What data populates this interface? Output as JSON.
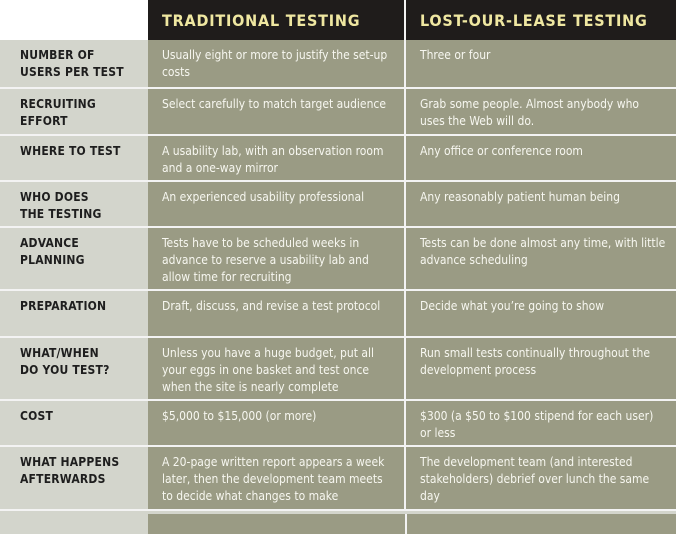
{
  "header": {
    "traditional": "TRADITIONAL TESTING",
    "lost_lease": "LOST-OUR-LEASE TESTING"
  },
  "rows": [
    {
      "label": "NUMBER OF\nUSERS PER TEST",
      "traditional": "Usually eight or more to justify the set-up costs",
      "lost_lease": "Three or four"
    },
    {
      "label": "RECRUITING\nEFFORT",
      "traditional": "Select carefully to match target audience",
      "lost_lease": "Grab some people. Almost anybody who uses the Web will do."
    },
    {
      "label": "WHERE TO TEST",
      "traditional": "A usability lab, with an observation room and a one-way mirror",
      "lost_lease": "Any office or conference room"
    },
    {
      "label": "WHO DOES\nTHE TESTING",
      "traditional": "An experienced usability professional",
      "lost_lease": "Any reasonably patient human being"
    },
    {
      "label": "ADVANCE\nPLANNING",
      "traditional": "Tests have to be scheduled weeks in advance to reserve a usability lab and allow time for recruiting",
      "lost_lease": "Tests can be done almost any time, with little advance scheduling"
    },
    {
      "label": "PREPARATION",
      "traditional": "Draft, discuss, and revise a test protocol",
      "lost_lease": "Decide what you’re going to show"
    },
    {
      "label": "WHAT/WHEN\nDO YOU TEST?",
      "traditional": "Unless you have a huge budget, put all your eggs in one basket and test once when the site is nearly complete",
      "lost_lease": "Run small tests continually throughout the development process"
    },
    {
      "label": "COST",
      "traditional": "$5,000 to $15,000 (or more)",
      "lost_lease": "$300 (a $50 to $100 stipend for each user) or less"
    },
    {
      "label": "WHAT HAPPENS\nAFTERWARDS",
      "traditional": "A 20-page written report appears a week later, then the development team meets to decide what changes to make",
      "lost_lease": "The development team (and interested stakeholders) debrief over lunch the same day"
    }
  ]
}
